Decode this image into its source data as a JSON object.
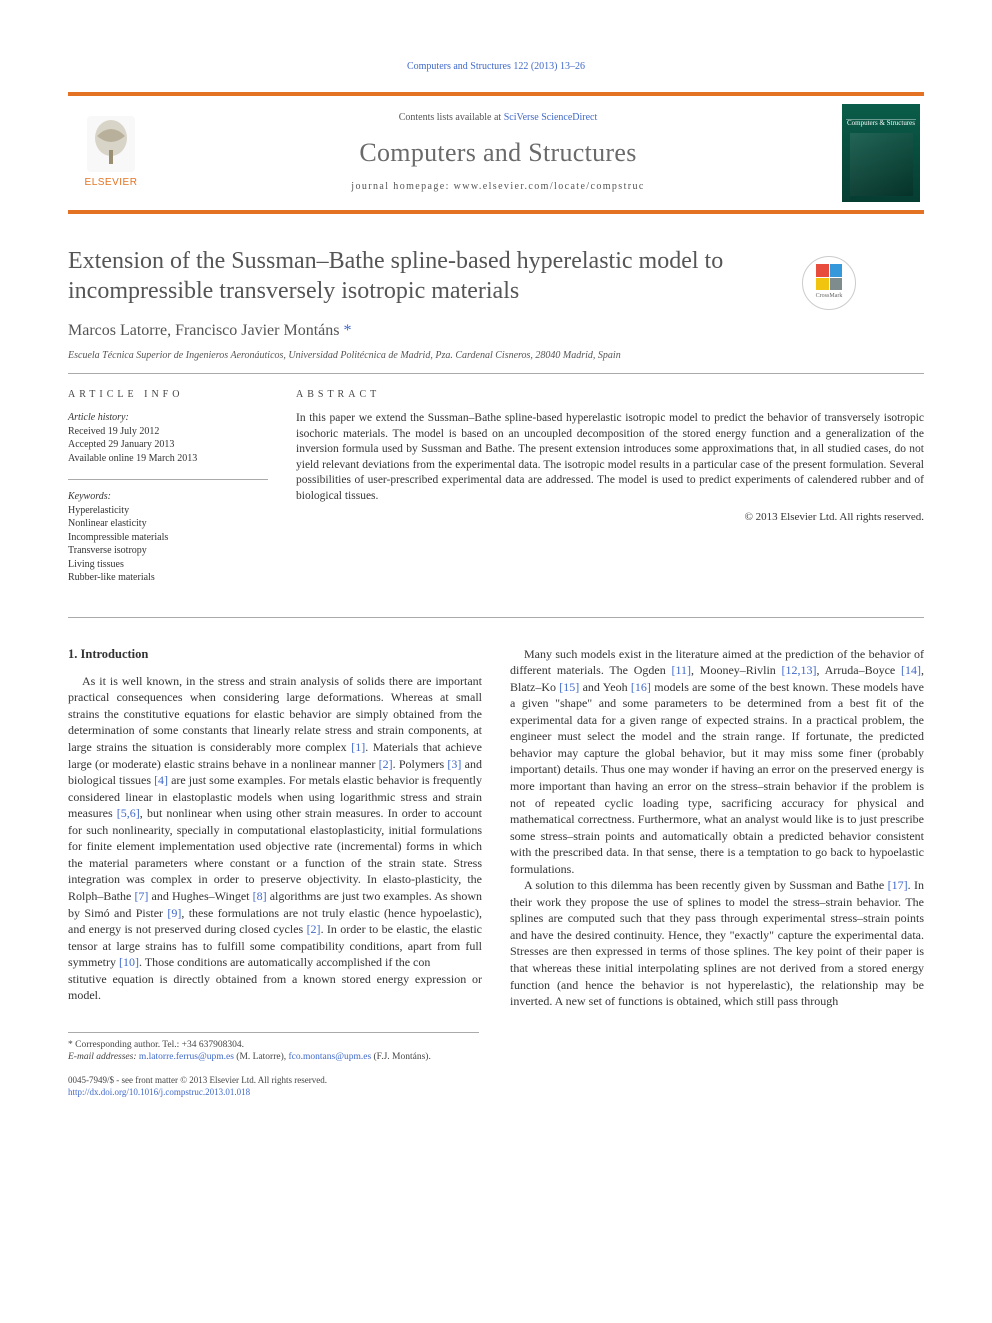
{
  "running_head": "Computers and Structures 122 (2013) 13–26",
  "header": {
    "publisher": "ELSEVIER",
    "contents_prefix": "Contents lists available at ",
    "contents_link": "SciVerse ScienceDirect",
    "journal": "Computers and Structures",
    "homepage_label": "journal homepage: ",
    "homepage_url": "www.elsevier.com/locate/compstruc",
    "cover_title": "Computers & Structures",
    "crossmark": "CrossMark"
  },
  "title": "Extension of the Sussman–Bathe spline-based hyperelastic model to incompressible transversely isotropic materials",
  "authors_plain": "Marcos Latorre, Francisco Javier Montáns",
  "corr_link": "*",
  "affiliation": "Escuela Técnica Superior de Ingenieros Aeronáuticos, Universidad Politécnica de Madrid, Pza. Cardenal Cisneros, 28040 Madrid, Spain",
  "info": {
    "heading": "ARTICLE INFO",
    "history_label": "Article history:",
    "received": "Received 19 July 2012",
    "accepted": "Accepted 29 January 2013",
    "online": "Available online 19 March 2013",
    "keywords_label": "Keywords:",
    "keywords": [
      "Hyperelasticity",
      "Nonlinear elasticity",
      "Incompressible materials",
      "Transverse isotropy",
      "Living tissues",
      "Rubber-like materials"
    ]
  },
  "abstract": {
    "heading": "ABSTRACT",
    "text": "In this paper we extend the Sussman–Bathe spline-based hyperelastic isotropic model to predict the behavior of transversely isotropic isochoric materials. The model is based on an uncoupled decomposition of the stored energy function and a generalization of the inversion formula used by Sussman and Bathe. The present extension introduces some approximations that, in all studied cases, do not yield relevant deviations from the experimental data. The isotropic model results in a particular case of the present formulation. Several possibilities of user-prescribed experimental data are addressed. The model is used to predict experiments of calendered rubber and of biological tissues.",
    "copyright": "© 2013 Elsevier Ltd. All rights reserved."
  },
  "section_head": "1. Introduction",
  "paras": [
    "As it is well known, in the stress and strain analysis of solids there are important practical consequences when considering large deformations. Whereas at small strains the constitutive equations for elastic behavior are simply obtained from the determination of some constants that linearly relate stress and strain components, at large strains the situation is considerably more complex [1]. Materials that achieve large (or moderate) elastic strains behave in a nonlinear manner [2]. Polymers [3] and biological tissues [4] are just some examples. For metals elastic behavior is frequently considered linear in elastoplastic models when using logarithmic stress and strain measures [5,6], but nonlinear when using other strain measures. In order to account for such nonlinearity, specially in computational elastoplasticity, initial formulations for finite element implementation used objective rate (incremental) forms in which the material parameters where constant or a function of the strain state. Stress integration was complex in order to preserve objectivity. In elasto-plasticity, the Rolph–Bathe [7] and Hughes–Winget [8] algorithms are just two examples. As shown by Simó and Pister [9], these formulations are not truly elastic (hence hypoelastic), and energy is not preserved during closed cycles [2]. In order to be elastic, the elastic tensor at large strains has to fulfill some compatibility conditions, apart from full symmetry [10]. Those conditions are automatically accomplished if the con",
    "stitutive equation is directly obtained from a known stored energy expression or model.",
    "Many such models exist in the literature aimed at the prediction of the behavior of different materials. The Ogden [11], Mooney–Rivlin [12,13], Arruda–Boyce [14], Blatz–Ko [15] and Yeoh [16] models are some of the best known. These models have a given \"shape\" and some parameters to be determined from a best fit of the experimental data for a given range of expected strains. In a practical problem, the engineer must select the model and the strain range. If fortunate, the predicted behavior may capture the global behavior, but it may miss some finer (probably important) details. Thus one may wonder if having an error on the preserved energy is more important than having an error on the stress–strain behavior if the problem is not of repeated cyclic loading type, sacrificing accuracy for physical and mathematical correctness. Furthermore, what an analyst would like is to just prescribe some stress–strain points and automatically obtain a predicted behavior consistent with the prescribed data. In that sense, there is a temptation to go back to hypoelastic formulations.",
    "A solution to this dilemma has been recently given by Sussman and Bathe [17]. In their work they propose the use of splines to model the stress–strain behavior. The splines are computed such that they pass through experimental stress–strain points and have the desired continuity. Hence, they \"exactly\" capture the experimental data. Stresses are then expressed in terms of those splines. The key point of their paper is that whereas these initial interpolating splines are not derived from a stored energy function (and hence the behavior is not hyperelastic), the relationship may be inverted. A new set of functions is obtained, which still pass through"
  ],
  "refs": {
    "1": "[1]",
    "2": "[2]",
    "3": "[3]",
    "4": "[4]",
    "5": "[5,6]",
    "7": "[7]",
    "8": "[8]",
    "9": "[9]",
    "10": "[10]",
    "11": "[11]",
    "12": "[12,13]",
    "14": "[14]",
    "15": "[15]",
    "16": "[16]",
    "17": "[17]"
  },
  "footnotes": {
    "corr": "* Corresponding author. Tel.: +34 637908304.",
    "email_label": "E-mail addresses: ",
    "email1": "m.latorre.ferrus@upm.es",
    "email1_who": " (M. Latorre), ",
    "email2": "fco.montans@upm.es",
    "email2_who": " (F.J. Montáns)."
  },
  "footer": {
    "issn": "0045-7949/$ - see front matter © 2013 Elsevier Ltd. All rights reserved.",
    "doi": "http://dx.doi.org/10.1016/j.compstruc.2013.01.018"
  },
  "colors": {
    "accent_orange": "#e37222",
    "link_blue": "#4169c9",
    "text_gray": "#555555",
    "cover_green": "#0a5d4a"
  }
}
